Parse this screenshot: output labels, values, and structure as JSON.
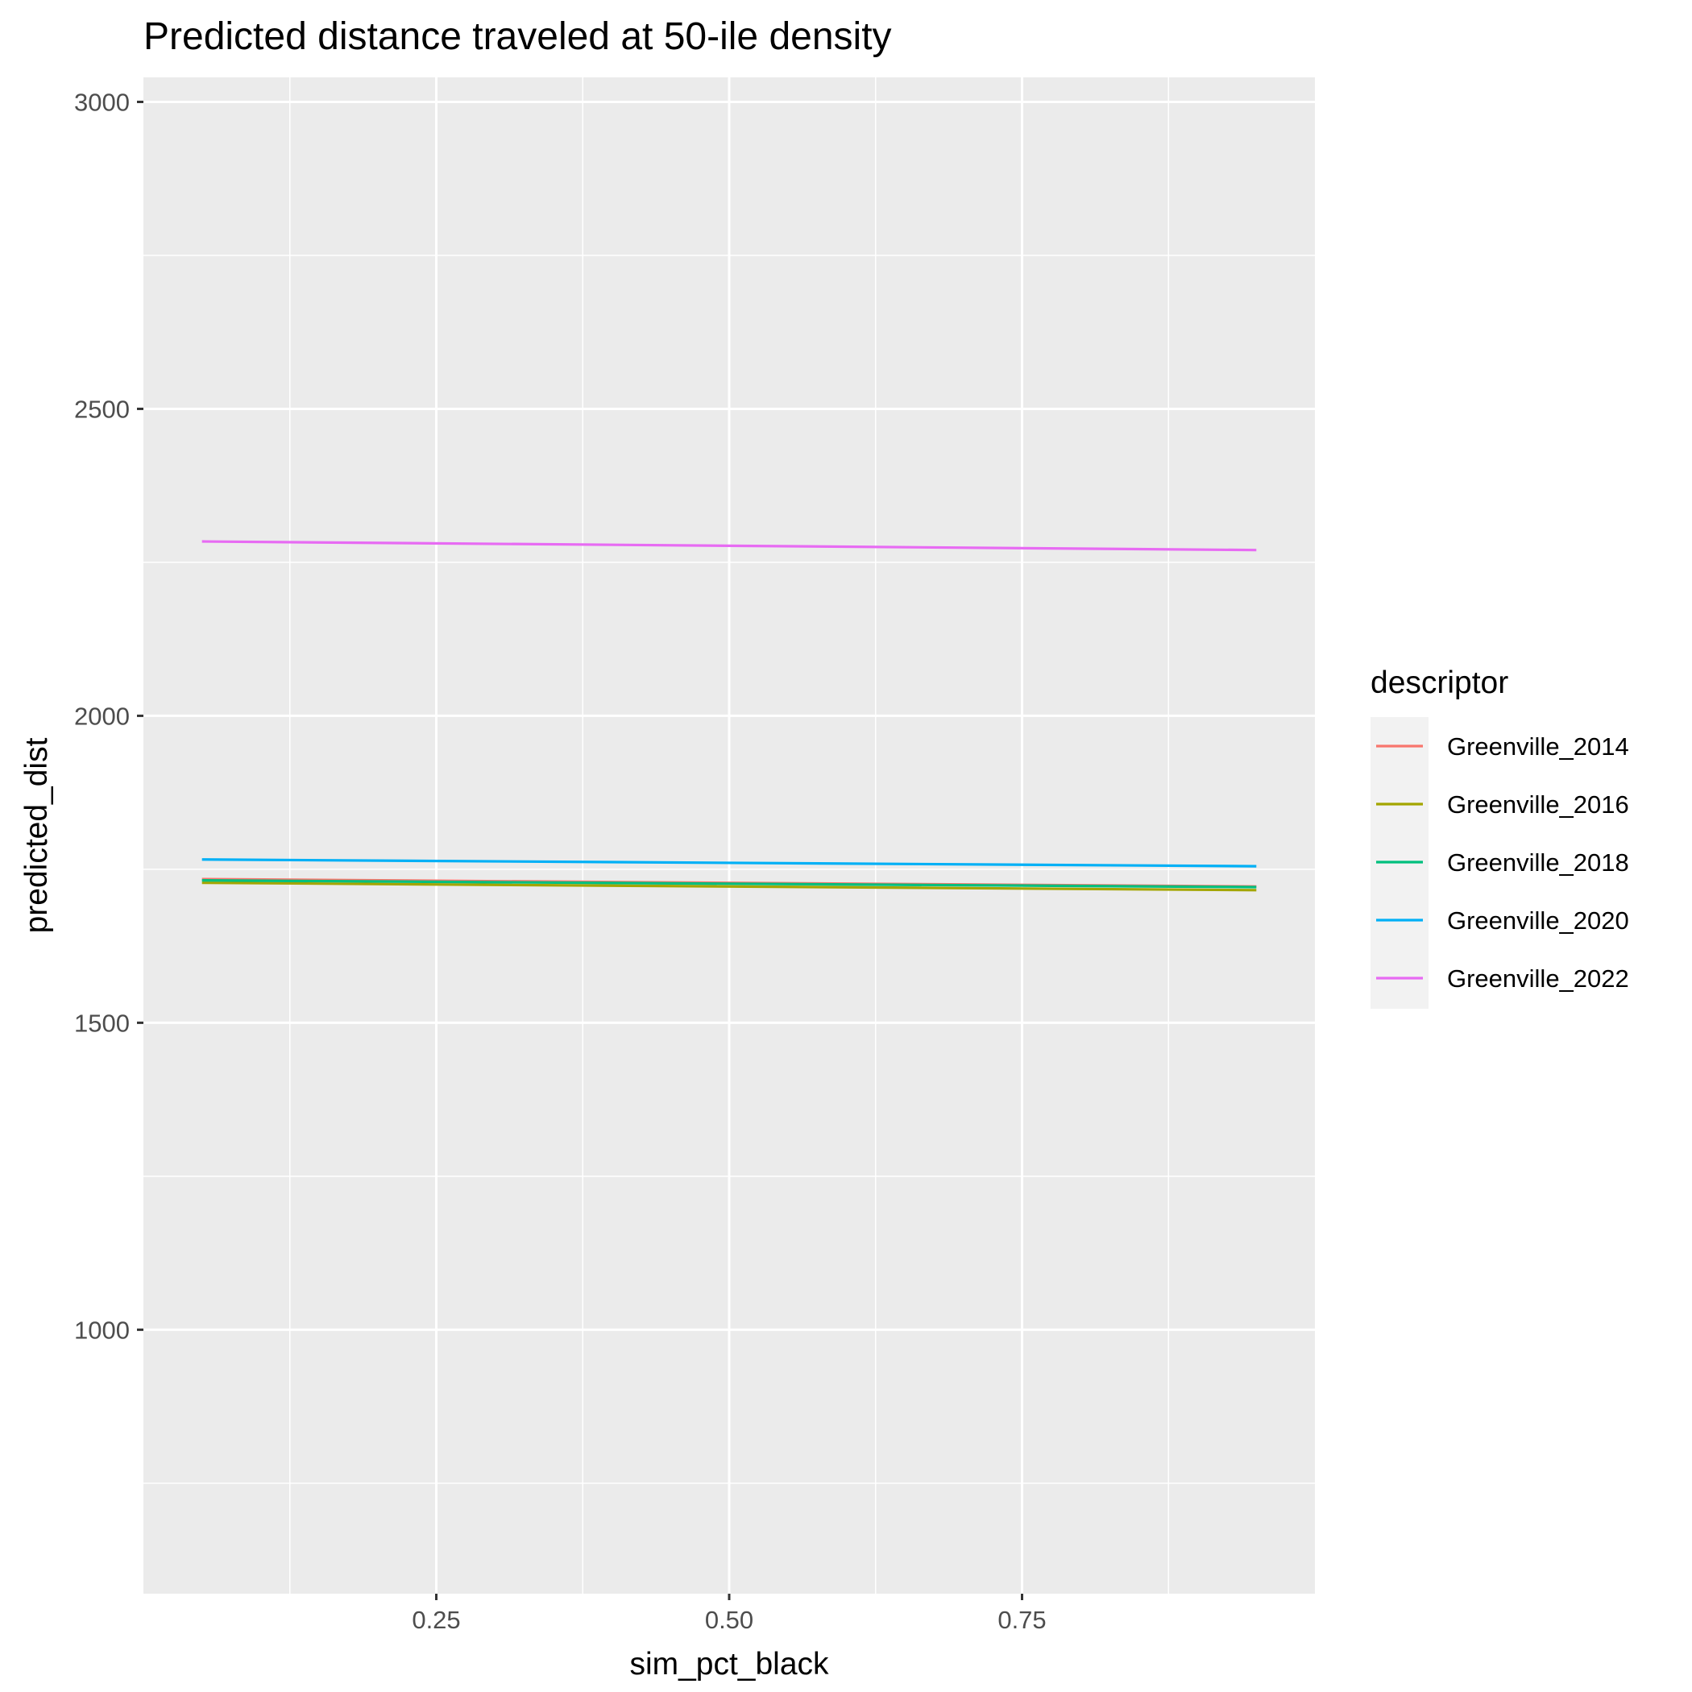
{
  "chart_data": {
    "type": "line",
    "title": "Predicted distance traveled at 50-ile density",
    "xlabel": "sim_pct_black",
    "ylabel": "predicted_dist",
    "xlim": [
      0.0,
      1.0
    ],
    "ylim": [
      570,
      3040
    ],
    "x_ticks": [
      0.25,
      0.5,
      0.75
    ],
    "x_tick_labels": [
      "0.25",
      "0.50",
      "0.75"
    ],
    "y_ticks": [
      1000,
      1500,
      2000,
      2500,
      3000
    ],
    "y_tick_labels": [
      "1000",
      "1500",
      "2000",
      "2500",
      "3000"
    ],
    "grid": true,
    "legend": {
      "title": "descriptor",
      "position": "right"
    },
    "series": [
      {
        "name": "Greenville_2014",
        "color": "#F8766D",
        "x": [
          0.05,
          0.95
        ],
        "y": [
          1734,
          1722
        ]
      },
      {
        "name": "Greenville_2016",
        "color": "#A3A500",
        "x": [
          0.05,
          0.95
        ],
        "y": [
          1728,
          1716
        ]
      },
      {
        "name": "Greenville_2018",
        "color": "#00BF7D",
        "x": [
          0.05,
          0.95
        ],
        "y": [
          1732,
          1721
        ]
      },
      {
        "name": "Greenville_2020",
        "color": "#00B0F6",
        "x": [
          0.05,
          0.95
        ],
        "y": [
          1766,
          1755
        ]
      },
      {
        "name": "Greenville_2022",
        "color": "#E76BF3",
        "x": [
          0.05,
          0.95
        ],
        "y": [
          2284,
          2270
        ]
      }
    ]
  }
}
